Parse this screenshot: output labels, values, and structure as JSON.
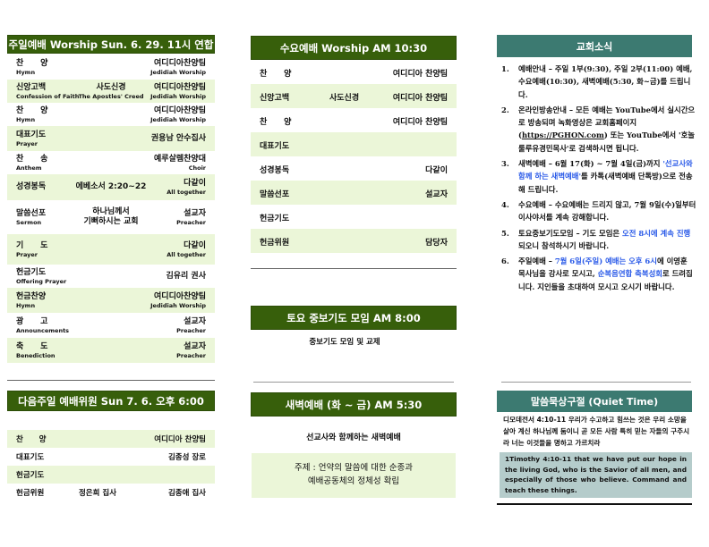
{
  "sunday": {
    "title": "주일예배 Worship Sun. 6. 29. 11시 연합",
    "rows": [
      {
        "ko": "찬      양",
        "en": "Hymn",
        "mid": "",
        "mid_en": "",
        "right": "여디디아찬양팀",
        "right_en": "Jedidiah Worship"
      },
      {
        "ko": "신앙고백",
        "en": "Confession of Faith",
        "mid": "사도신경",
        "mid_en": "The Apostles' Creed",
        "right": "여디디아찬양팀",
        "right_en": "Jedidiah Worship"
      },
      {
        "ko": "찬      양",
        "en": "Hymn",
        "mid": "",
        "mid_en": "",
        "right": "여디디아찬양팀",
        "right_en": "Jedidiah Worship"
      },
      {
        "ko": "대표기도",
        "en": "Prayer",
        "mid": "",
        "mid_en": "",
        "right": "권용남 안수집사",
        "right_en": ""
      },
      {
        "ko": "찬      송",
        "en": "Anthem",
        "mid": "",
        "mid_en": "",
        "right": "예루살렘찬양대",
        "right_en": "Choir"
      },
      {
        "ko": "성경봉독",
        "en": "",
        "mid": "에베소서 2:20~22",
        "mid_en": "",
        "right": "다같이",
        "right_en": "All together"
      },
      {
        "ko": "말씀선포",
        "en": "Sermon",
        "mid": "하나님께서",
        "mid_en": "기뻐하시는 교회",
        "right": "설교자",
        "right_en": "Preacher"
      },
      {
        "ko": "기      도",
        "en": "Prayer",
        "mid": "",
        "mid_en": "",
        "right": "다같이",
        "right_en": "All together"
      },
      {
        "ko": "헌금기도",
        "en": "Offering Prayer",
        "mid": "",
        "mid_en": "",
        "right": "김유리 권사",
        "right_en": ""
      },
      {
        "ko": "헌금찬양",
        "en": "Hymn",
        "mid": "",
        "mid_en": "",
        "right": "여디디아찬양팀",
        "right_en": "Jedidiah Worship"
      },
      {
        "ko": "광      고",
        "en": "Announcements",
        "mid": "",
        "mid_en": "",
        "right": "설교자",
        "right_en": "Preacher"
      },
      {
        "ko": "축      도",
        "en": "Benediction",
        "mid": "",
        "mid_en": "",
        "right": "설교자",
        "right_en": "Preacher"
      }
    ]
  },
  "next_week": {
    "title": "다음주일 예배위원  Sun 7. 6. 오후 6:00",
    "rows": [
      {
        "ko": "찬      양",
        "mid": "",
        "right": "여디디아 찬양팀"
      },
      {
        "ko": "대표기도",
        "mid": "",
        "right": "김종성 장로"
      },
      {
        "ko": "헌금기도",
        "mid": "",
        "right": ""
      },
      {
        "ko": "헌금위원",
        "mid": "정은희 집사",
        "right": "김종애 집사"
      }
    ]
  },
  "wednesday": {
    "title": "수요예배 Worship AM 10:30",
    "rows": [
      {
        "ko": "찬      양",
        "mid": "",
        "right": "여디디아 찬양팀"
      },
      {
        "ko": "신앙고백",
        "mid": "사도신경",
        "right": "여디디아 찬양팀"
      },
      {
        "ko": "찬      양",
        "mid": "",
        "right": "여디디아 찬양팀"
      },
      {
        "ko": "대표기도",
        "mid": "",
        "right": ""
      },
      {
        "ko": "성경봉독",
        "mid": "",
        "right": "다같이"
      },
      {
        "ko": "말씀선포",
        "mid": "",
        "right": "설교자"
      },
      {
        "ko": "헌금기도",
        "mid": "",
        "right": ""
      },
      {
        "ko": "헌금위원",
        "mid": "",
        "right": "담당자"
      }
    ]
  },
  "saturday": {
    "title": "토요 중보기도 모임  AM 8:00",
    "text": "중보기도 모임 및 교제"
  },
  "dawn": {
    "title": "새벽예배 (화 ~ 금) AM 5:30",
    "text": "선교사와 함께하는 새벽예배",
    "theme_line1": "주제 : 언약의 말씀에 대한 순종과",
    "theme_line2": "예배공동체의 정체성 확립"
  },
  "news": {
    "title": "교회소식",
    "items": [
      {
        "n": "1.",
        "parts": [
          {
            "t": "예배안내 – 주일 1부(9:30), 주일 2부(11:00) 예배, 수요예배(10:30), 새벽예배(5:30, 화~금)를 드립니다.",
            "blue": false
          }
        ]
      },
      {
        "n": "2.",
        "parts": [
          {
            "t": "온라인방송안내 – 모든 예배는 YouTube에서 실시간으로 방송되며 녹화영상은 교회홈페이지(",
            "blue": false
          },
          {
            "t": "https://PGHON.com",
            "blue": false,
            "u": true
          },
          {
            "t": ") 또는 YouTube에서 '호놀룰루유경민목사'로 검색하시면 됩니다.",
            "blue": false
          }
        ]
      },
      {
        "n": "3.",
        "parts": [
          {
            "t": "새벽예배 – 6월 17(화) ~ 7월 4일(금)까지 ",
            "blue": false
          },
          {
            "t": "'선교사와 함께 하는 새벽예배'",
            "blue": true
          },
          {
            "t": "를 카톡(새벽예배 단톡방)으로 전송해 드립니다.",
            "blue": false
          }
        ]
      },
      {
        "n": "4.",
        "parts": [
          {
            "t": "수요예배 – 수요예배는 드리지 않고, 7월 9일(수)일부터 이사야서를 계속 강해합니다.",
            "blue": false
          }
        ]
      },
      {
        "n": "5.",
        "parts": [
          {
            "t": "토요중보기도모임 – 기도 모임은 ",
            "blue": false
          },
          {
            "t": "오전 8시에 계속 진행",
            "blue": true
          },
          {
            "t": "되오니 참석하시기 바랍니다.",
            "blue": false
          }
        ]
      },
      {
        "n": "6.",
        "parts": [
          {
            "t": "주일예배 – ",
            "blue": false
          },
          {
            "t": "7월 6일(주일) 예배는 오후 6시",
            "blue": true
          },
          {
            "t": "에 이영훈 목사님을 강사로 모시고, ",
            "blue": false
          },
          {
            "t": "순복음연합 축복성회",
            "blue": true
          },
          {
            "t": "로 드려집니다. 지인들을 초대하여 모시고 오시기 바랍니다.",
            "blue": false
          }
        ]
      }
    ]
  },
  "qt": {
    "title": "말씀묵상구절 (Quiet Time)",
    "korean": "디모데전서 4:10-11 우리가 수고하고 힘쓰는 것은 우리 소망을 살아 계신 하나님께 둠이니 곧 모든 사람 특히 믿는 자들의 구주시라 너는 이것들을 명하고 가르치라",
    "english": "1Timothy 4:10-11 that we have put our hope in the living God, who is the Savior of all men, and especially of those who believe. Command and teach these things."
  },
  "colors": {
    "header_green": "#375f0b",
    "row_green": "#ebf6d8",
    "header_teal": "#3c7a71",
    "qt_box": "#b5cccb",
    "link_blue": "#2a5ae8"
  }
}
